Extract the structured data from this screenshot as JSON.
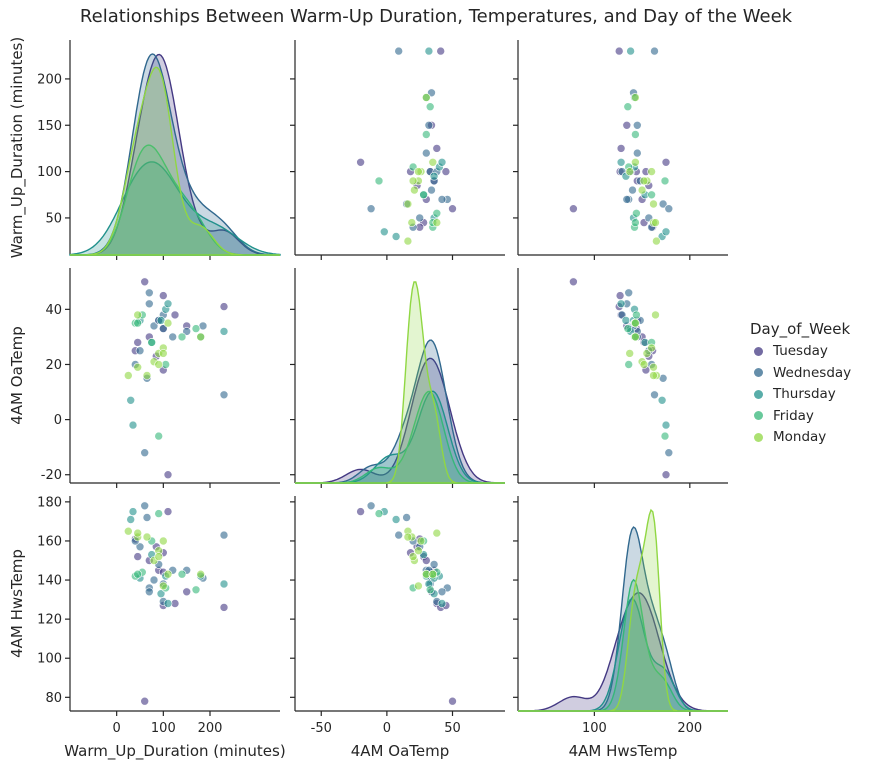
{
  "title": "Relationships Between Warm-Up Duration, Temperatures, and Day of the Week",
  "legend": {
    "title": "Day_of_Week"
  },
  "chart_data": {
    "type": "scatter",
    "kind": "pairplot",
    "variables": [
      "Warm_Up_Duration (minutes)",
      "4AM OaTemp",
      "4AM HwsTemp"
    ],
    "ticks": {
      "Warm_Up_Duration (minutes)": {
        "axis_ticks": [
          0,
          100,
          200
        ],
        "range": [
          -100,
          350
        ],
        "diag_ticks": [
          50,
          100,
          150,
          200
        ],
        "diag_range": [
          10,
          242
        ]
      },
      "4AM OaTemp": {
        "axis_ticks": [
          -20,
          0,
          20,
          40
        ],
        "range": [
          -23,
          55
        ],
        "x_ticks": [
          -50,
          0,
          50
        ],
        "x_range": [
          -70,
          90
        ]
      },
      "4AM HwsTemp": {
        "axis_ticks": [
          80,
          100,
          120,
          140,
          160,
          180
        ],
        "range": [
          73,
          183
        ],
        "x_ticks": [
          100,
          200
        ],
        "x_range": [
          20,
          240
        ]
      }
    },
    "hue_order": [
      "Tuesday",
      "Wednesday",
      "Thursday",
      "Friday",
      "Monday"
    ],
    "colors": {
      "Tuesday": "#443983",
      "Wednesday": "#31688e",
      "Thursday": "#21918c",
      "Friday": "#35b779",
      "Monday": "#90d743"
    },
    "series": [
      {
        "name": "Tuesday",
        "points": [
          [
            60,
            50,
            78
          ],
          [
            90,
            36,
            145
          ],
          [
            100,
            33,
            144
          ],
          [
            125,
            38,
            128
          ],
          [
            45,
            28,
            152
          ],
          [
            150,
            34,
            134
          ],
          [
            40,
            25,
            161
          ],
          [
            110,
            -20,
            175
          ],
          [
            85,
            23,
            157
          ],
          [
            100,
            18,
            154
          ],
          [
            230,
            41,
            126
          ],
          [
            100,
            45,
            127
          ],
          [
            70,
            30,
            150
          ]
        ]
      },
      {
        "name": "Wednesday",
        "points": [
          [
            80,
            34,
            140
          ],
          [
            70,
            46,
            136
          ],
          [
            230,
            9,
            163
          ],
          [
            120,
            30,
            145
          ],
          [
            65,
            15,
            172
          ],
          [
            60,
            -12,
            178
          ],
          [
            90,
            36,
            148
          ],
          [
            100,
            33,
            138
          ],
          [
            50,
            25,
            157
          ],
          [
            100,
            38,
            129
          ],
          [
            150,
            32,
            145
          ],
          [
            70,
            42,
            134
          ],
          [
            185,
            34,
            141
          ],
          [
            40,
            20,
            160
          ]
        ]
      },
      {
        "name": "Thursday",
        "points": [
          [
            30,
            7,
            171
          ],
          [
            230,
            32,
            138
          ],
          [
            105,
            40,
            142
          ],
          [
            75,
            28,
            153
          ],
          [
            95,
            36,
            133
          ],
          [
            50,
            36,
            141
          ],
          [
            180,
            30,
            142
          ],
          [
            35,
            -2,
            175
          ],
          [
            110,
            42,
            128
          ]
        ]
      },
      {
        "name": "Friday",
        "points": [
          [
            40,
            35,
            142
          ],
          [
            140,
            30,
            143
          ],
          [
            75,
            28,
            160
          ],
          [
            105,
            20,
            136
          ],
          [
            55,
            38,
            144
          ],
          [
            45,
            35,
            143
          ],
          [
            170,
            33,
            135
          ],
          [
            90,
            -6,
            174
          ]
        ]
      },
      {
        "name": "Monday",
        "points": [
          [
            25,
            16,
            165
          ],
          [
            90,
            24,
            155
          ],
          [
            45,
            19,
            162
          ],
          [
            80,
            21,
            150
          ],
          [
            100,
            26,
            160
          ],
          [
            180,
            30,
            143
          ],
          [
            45,
            38,
            164
          ],
          [
            110,
            35,
            143
          ],
          [
            65,
            16,
            162
          ],
          [
            100,
            24,
            137
          ],
          [
            90,
            20,
            152
          ]
        ]
      }
    ]
  }
}
